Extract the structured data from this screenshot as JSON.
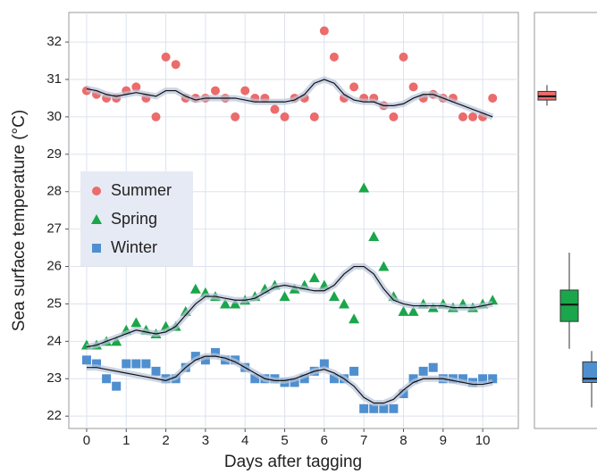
{
  "chart_data": [
    {
      "type": "scatter",
      "x_label": "Days after tagging",
      "y_label": "Sea surface temperature (°C)",
      "xlim": [
        -0.45,
        10.9
      ],
      "ylim": [
        21.67,
        32.79
      ],
      "xticks": [
        0,
        1,
        2,
        3,
        4,
        5,
        6,
        7,
        8,
        9,
        10
      ],
      "yticks": [
        22,
        23,
        24,
        25,
        26,
        27,
        28,
        29,
        30,
        31,
        32
      ],
      "grid": true,
      "legend_position": "left",
      "x": [
        0,
        0.25,
        0.5,
        0.75,
        1,
        1.25,
        1.5,
        1.75,
        2,
        2.25,
        2.5,
        2.75,
        3,
        3.25,
        3.5,
        3.75,
        4,
        4.25,
        4.5,
        4.75,
        5,
        5.25,
        5.5,
        5.75,
        6,
        6.25,
        6.5,
        6.75,
        7,
        7.25,
        7.5,
        7.75,
        8,
        8.25,
        8.5,
        8.75,
        9,
        9.25,
        9.5,
        9.75,
        10,
        10.25
      ],
      "series": [
        {
          "name": "Summer",
          "color": "#ec6b6b",
          "marker": "circle",
          "values": [
            30.7,
            30.6,
            30.5,
            30.5,
            30.7,
            30.8,
            30.5,
            30.0,
            31.6,
            31.4,
            30.5,
            30.5,
            30.5,
            30.7,
            30.5,
            30.0,
            30.7,
            30.5,
            30.5,
            30.2,
            30.0,
            30.5,
            30.5,
            30.0,
            32.3,
            31.6,
            30.5,
            30.8,
            30.5,
            30.5,
            30.3,
            30.0,
            31.6,
            30.8,
            30.5,
            30.6,
            30.5,
            30.5,
            30.0,
            30.0,
            30.0,
            30.5
          ],
          "smooth": [
            30.75,
            30.7,
            30.6,
            30.55,
            30.6,
            30.65,
            30.6,
            30.55,
            30.7,
            30.7,
            30.55,
            30.45,
            30.5,
            30.5,
            30.5,
            30.5,
            30.45,
            30.4,
            30.4,
            30.4,
            30.4,
            30.45,
            30.6,
            30.9,
            31.0,
            30.9,
            30.6,
            30.45,
            30.4,
            30.4,
            30.3,
            30.3,
            30.35,
            30.5,
            30.6,
            30.6,
            30.5,
            30.4,
            30.3,
            30.2,
            30.1,
            30.0
          ]
        },
        {
          "name": "Spring",
          "color": "#1aa64a",
          "marker": "triangle",
          "values": [
            23.9,
            23.9,
            24.0,
            24.0,
            24.3,
            24.5,
            24.3,
            24.2,
            24.4,
            24.4,
            24.8,
            25.4,
            25.3,
            25.2,
            25.0,
            25.0,
            25.1,
            25.2,
            25.4,
            25.5,
            25.2,
            25.4,
            25.5,
            25.7,
            25.5,
            25.2,
            25.0,
            24.6,
            28.1,
            26.8,
            26.0,
            25.2,
            24.8,
            24.8,
            25.0,
            24.9,
            25.0,
            24.9,
            25.0,
            24.9,
            25.0,
            25.1
          ],
          "smooth": [
            23.85,
            23.9,
            24.0,
            24.1,
            24.2,
            24.3,
            24.25,
            24.2,
            24.25,
            24.4,
            24.7,
            25.0,
            25.2,
            25.2,
            25.15,
            25.1,
            25.1,
            25.15,
            25.3,
            25.45,
            25.5,
            25.45,
            25.4,
            25.35,
            25.35,
            25.5,
            25.8,
            26.0,
            26.0,
            25.8,
            25.4,
            25.1,
            25.0,
            24.95,
            24.95,
            24.95,
            24.95,
            24.9,
            24.9,
            24.9,
            24.95,
            25.0
          ]
        },
        {
          "name": "Winter",
          "color": "#4f8fcf",
          "marker": "square",
          "values": [
            23.5,
            23.4,
            23.0,
            22.8,
            23.4,
            23.4,
            23.4,
            23.2,
            23.0,
            23.0,
            23.3,
            23.6,
            23.5,
            23.7,
            23.5,
            23.5,
            23.3,
            23.0,
            23.0,
            23.0,
            22.9,
            22.9,
            23.0,
            23.2,
            23.4,
            23.0,
            23.0,
            23.2,
            22.2,
            22.2,
            22.2,
            22.2,
            22.6,
            23.0,
            23.2,
            23.3,
            23.0,
            23.0,
            23.0,
            22.9,
            23.0,
            23.0
          ],
          "smooth": [
            23.3,
            23.3,
            23.25,
            23.2,
            23.15,
            23.1,
            23.05,
            23.0,
            22.95,
            23.05,
            23.3,
            23.5,
            23.6,
            23.6,
            23.55,
            23.45,
            23.3,
            23.15,
            23.0,
            22.95,
            22.95,
            23.0,
            23.1,
            23.2,
            23.25,
            23.15,
            23.0,
            22.8,
            22.5,
            22.35,
            22.35,
            22.45,
            22.7,
            22.9,
            23.0,
            23.0,
            23.0,
            22.95,
            22.9,
            22.85,
            22.85,
            22.9
          ]
        }
      ]
    },
    {
      "type": "box",
      "ylim": [
        21.67,
        32.79
      ],
      "boxes": [
        {
          "color": "#ec6b6b",
          "values": [
            30.3,
            30.45,
            30.55,
            30.68,
            30.85
          ]
        },
        {
          "color": "#1aa64a",
          "values": [
            23.8,
            24.53,
            24.98,
            25.37,
            26.37
          ]
        },
        {
          "color": "#4f8fcf",
          "values": [
            22.23,
            22.9,
            23.0,
            23.45,
            23.74
          ]
        }
      ]
    }
  ]
}
